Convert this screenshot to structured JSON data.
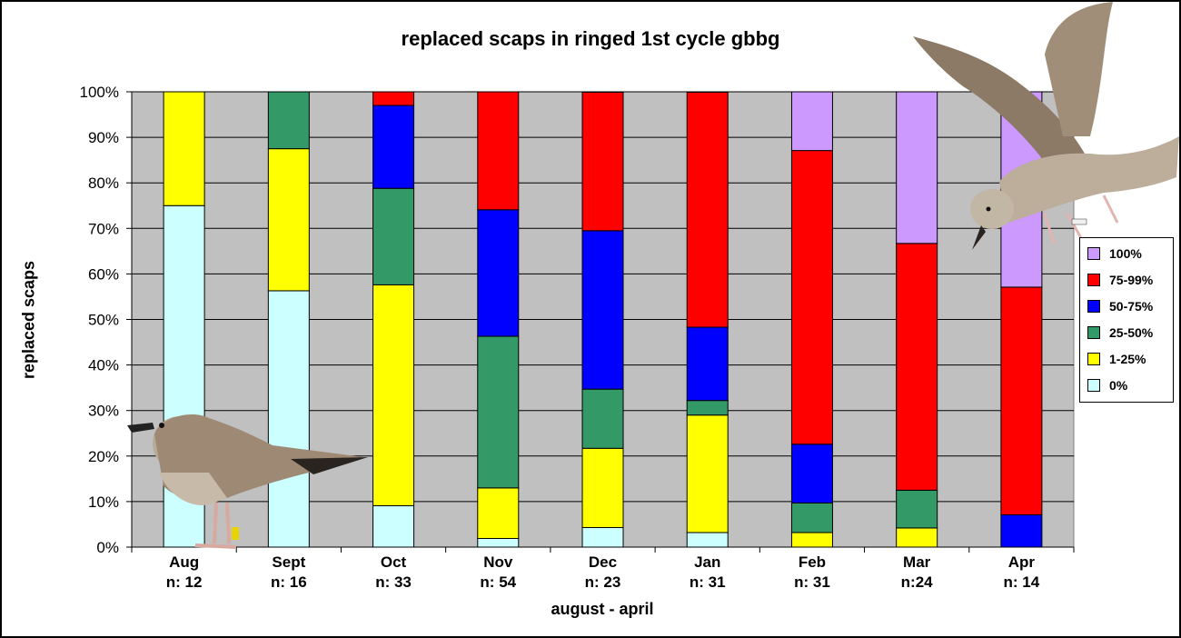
{
  "chart_data": {
    "type": "bar",
    "stacked": true,
    "percent": true,
    "title": "replaced scaps in ringed 1st cycle gbbg",
    "xlabel": "august - april",
    "ylabel": "replaced scaps",
    "ylim": [
      0,
      100
    ],
    "yticks": [
      "0%",
      "10%",
      "20%",
      "30%",
      "40%",
      "50%",
      "60%",
      "70%",
      "80%",
      "90%",
      "100%"
    ],
    "categories": [
      "Aug",
      "Sept",
      "Oct",
      "Nov",
      "Dec",
      "Jan",
      "Feb",
      "Mar",
      "Apr"
    ],
    "sample_sizes": [
      "n: 12",
      "n: 16",
      "n: 33",
      "n: 54",
      "n: 23",
      "n: 31",
      "n: 31",
      "n:24",
      "n: 14"
    ],
    "legend_position": "right",
    "plot_background": "#c0c0c0",
    "gridlines": true,
    "series": [
      {
        "name": "0%",
        "color": "#ccffff",
        "values": [
          75,
          56.3,
          9.1,
          1.9,
          4.3,
          3.2,
          0,
          0,
          0
        ]
      },
      {
        "name": "1-25%",
        "color": "#ffff00",
        "values": [
          25,
          31.2,
          48.5,
          11.1,
          17.4,
          25.8,
          3.2,
          4.2,
          0
        ]
      },
      {
        "name": "25-50%",
        "color": "#339966",
        "values": [
          0,
          12.5,
          21.2,
          33.3,
          13.0,
          3.2,
          6.5,
          8.3,
          0
        ]
      },
      {
        "name": "50-75%",
        "color": "#0000ff",
        "values": [
          0,
          0,
          18.2,
          27.8,
          34.8,
          16.1,
          12.9,
          0,
          7.1
        ]
      },
      {
        "name": "75-99%",
        "color": "#ff0000",
        "values": [
          0,
          0,
          3.0,
          25.9,
          30.4,
          51.6,
          64.5,
          54.2,
          50.0
        ]
      },
      {
        "name": "100%",
        "color": "#cc99ff",
        "values": [
          0,
          0,
          0,
          0,
          0,
          0,
          12.9,
          33.3,
          42.9
        ]
      }
    ]
  },
  "legend_order": [
    "100%",
    "75-99%",
    "50-75%",
    "25-50%",
    "1-25%",
    "0%"
  ],
  "photos": {
    "left": "juvenile-gull-standing",
    "right": "juvenile-gull-flying"
  }
}
